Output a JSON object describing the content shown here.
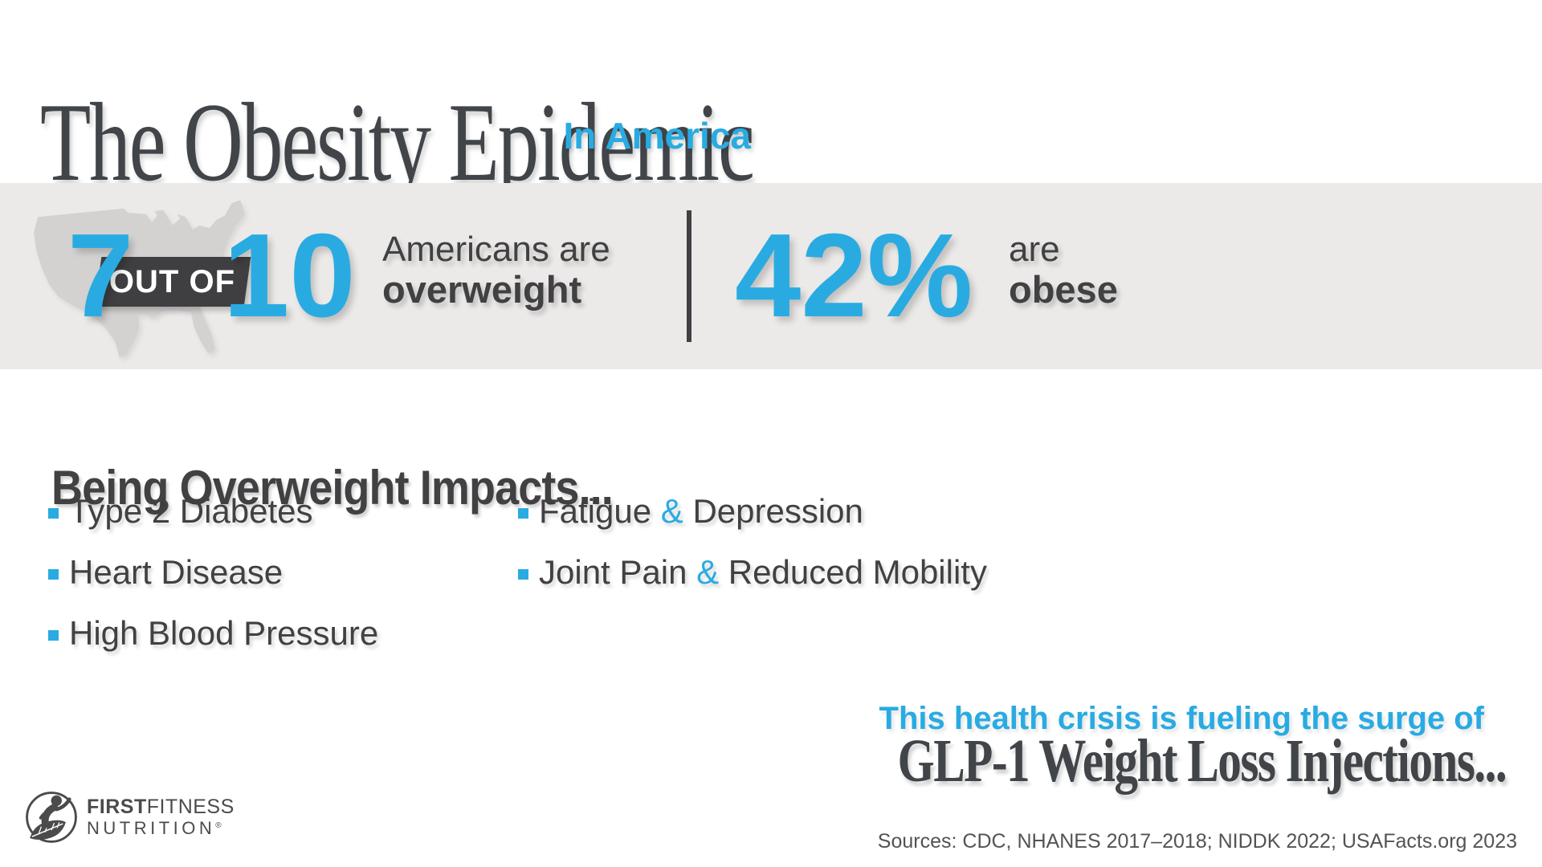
{
  "colors": {
    "accent_blue": "#29ABE2",
    "charcoal": "#414042",
    "band_background": "#EBEAE8",
    "map_gray": "#D3D2D1",
    "serif_dark": "#414549",
    "source_gray": "#525356"
  },
  "header": {
    "title": "The Obesity Epidemic",
    "subtitle": "In America"
  },
  "stats_band": {
    "stat1": {
      "number_left": "7",
      "connector": "OUT OF",
      "number_right": "10",
      "desc_line1": "Americans are",
      "desc_line2": "overweight"
    },
    "stat2": {
      "number": "42%",
      "desc_line1": "are",
      "desc_line2": "obese"
    }
  },
  "impacts": {
    "heading": "Being Overweight Impacts...",
    "column1": [
      "Type 2 Diabetes",
      "Heart Disease",
      "High Blood Pressure"
    ],
    "column2": [
      "Fatigue & Depression",
      "Joint Pain & Reduced Mobility"
    ]
  },
  "glp1": {
    "lead": "This health crisis is fueling the surge of",
    "headline": "GLP-1 Weight Loss Injections..."
  },
  "logo": {
    "brand_bold": "FIRST",
    "brand_regular": "FITNESS",
    "line2": "NUTRITION",
    "reg_mark": "®"
  },
  "sources": "Sources: CDC, NHANES 2017–2018; NIDDK 2022; USAFacts.org 2023"
}
